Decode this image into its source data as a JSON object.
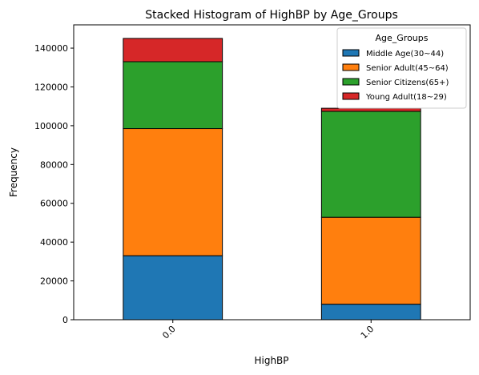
{
  "chart_data": {
    "type": "bar",
    "stacked": true,
    "title": "Stacked Histogram of HighBP by Age_Groups",
    "xlabel": "HighBP",
    "ylabel": "Frequency",
    "categories": [
      "0.0",
      "1.0"
    ],
    "ylim": [
      0,
      152000
    ],
    "yticks": [
      0,
      20000,
      40000,
      60000,
      80000,
      100000,
      120000,
      140000
    ],
    "grid": false,
    "legend_title": "Age_Groups",
    "legend_position": "top-right",
    "series": [
      {
        "name": "Middle Age(30~44)",
        "color": "#1f77b4",
        "values": [
          33000,
          8000
        ]
      },
      {
        "name": "Senior Adult(45~64)",
        "color": "#ff7f0e",
        "values": [
          65500,
          44800
        ]
      },
      {
        "name": "Senior Citizens(65+)",
        "color": "#2ca02c",
        "values": [
          34500,
          54600
        ]
      },
      {
        "name": "Young Adult(18~29)",
        "color": "#d62728",
        "values": [
          12000,
          1600
        ]
      }
    ]
  }
}
